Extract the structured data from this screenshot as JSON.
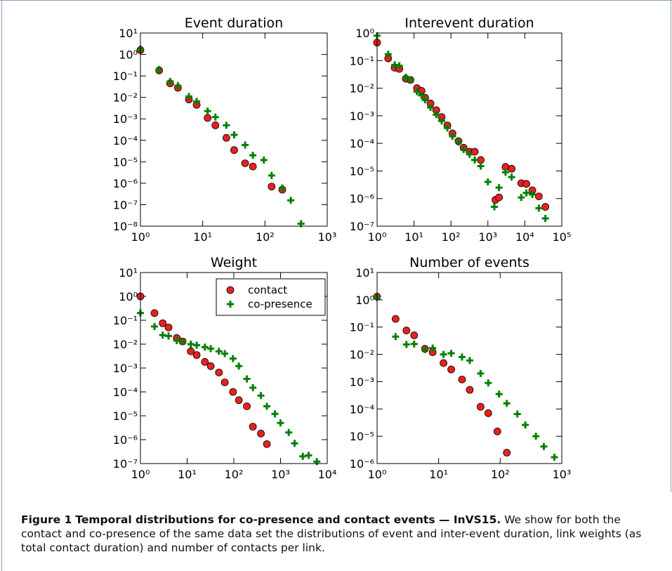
{
  "chart_data": [
    {
      "type": "scatter",
      "title": "Event duration",
      "log_x": true,
      "log_y": true,
      "xlim": [
        1,
        1000
      ],
      "ylim": [
        1e-08,
        10
      ],
      "xticks": [
        {
          "value": 1,
          "label": "10⁰"
        },
        {
          "value": 10,
          "label": "10¹"
        },
        {
          "value": 100,
          "label": "10²"
        },
        {
          "value": 1000,
          "label": "10³"
        }
      ],
      "yticks": [
        {
          "value": 1e-08,
          "label": "10⁻⁸"
        },
        {
          "value": 1e-07,
          "label": "10⁻⁷"
        },
        {
          "value": 1e-06,
          "label": "10⁻⁶"
        },
        {
          "value": 1e-05,
          "label": "10⁻⁵"
        },
        {
          "value": 0.0001,
          "label": "10⁻⁴"
        },
        {
          "value": 0.001,
          "label": "10⁻³"
        },
        {
          "value": 0.01,
          "label": "10⁻²"
        },
        {
          "value": 0.1,
          "label": "10⁻¹"
        },
        {
          "value": 1,
          "label": "10⁰"
        },
        {
          "value": 10,
          "label": "10¹"
        }
      ],
      "series": [
        {
          "color": "#e8201f",
          "marker": "circle",
          "x": [
            1,
            2,
            3,
            4,
            6,
            8,
            12,
            16,
            24,
            32,
            48,
            64,
            128,
            190
          ],
          "values": [
            1.6,
            0.18,
            0.045,
            0.028,
            0.008,
            0.0045,
            0.0011,
            0.0005,
            0.00013,
            3.5e-05,
            8.5e-06,
            6e-06,
            7e-07,
            5e-07
          ]
        },
        {
          "color": "#008000",
          "marker": "plus",
          "x": [
            1,
            2,
            3,
            4,
            6,
            8,
            12,
            16,
            24,
            32,
            48,
            64,
            96,
            128,
            190,
            260,
            380
          ],
          "values": [
            1.8,
            0.2,
            0.055,
            0.035,
            0.011,
            0.0065,
            0.0023,
            0.0012,
            0.0005,
            0.00018,
            6e-05,
            2e-05,
            1.2e-05,
            2.3e-06,
            6e-07,
            1.6e-07,
            1.3e-08
          ]
        }
      ]
    },
    {
      "type": "scatter",
      "title": "Interevent duration",
      "log_x": true,
      "log_y": true,
      "xlim": [
        1,
        100000
      ],
      "ylim": [
        1e-07,
        1
      ],
      "xticks": [
        {
          "value": 1,
          "label": "10⁰"
        },
        {
          "value": 10,
          "label": "10¹"
        },
        {
          "value": 100,
          "label": "10²"
        },
        {
          "value": 1000,
          "label": "10³"
        },
        {
          "value": 10000,
          "label": "10⁴"
        },
        {
          "value": 100000,
          "label": "10⁵"
        }
      ],
      "yticks": [
        {
          "value": 1e-07,
          "label": "10⁻⁷"
        },
        {
          "value": 1e-06,
          "label": "10⁻⁶"
        },
        {
          "value": 1e-05,
          "label": "10⁻⁵"
        },
        {
          "value": 0.0001,
          "label": "10⁻⁴"
        },
        {
          "value": 0.001,
          "label": "10⁻³"
        },
        {
          "value": 0.01,
          "label": "10⁻²"
        },
        {
          "value": 0.1,
          "label": "10⁻¹"
        },
        {
          "value": 1,
          "label": "10⁰"
        }
      ],
      "series": [
        {
          "color": "#e8201f",
          "marker": "circle",
          "x": [
            1,
            2,
            3,
            4,
            6,
            8,
            12,
            16,
            20,
            28,
            40,
            56,
            80,
            110,
            160,
            220,
            320,
            440,
            640,
            1600,
            2000,
            3000,
            4400,
            8000,
            11000,
            16000,
            24000,
            36000
          ],
          "values": [
            0.45,
            0.12,
            0.055,
            0.05,
            0.022,
            0.02,
            0.01,
            0.008,
            0.0045,
            0.0028,
            0.0016,
            0.0009,
            0.00045,
            0.00023,
            0.00012,
            7e-05,
            5e-05,
            5e-05,
            2.5e-05,
            9e-07,
            1.1e-06,
            1.4e-05,
            1.2e-05,
            3.6e-06,
            3.4e-06,
            2e-06,
            1.2e-06,
            5e-07
          ]
        },
        {
          "color": "#008000",
          "marker": "plus",
          "x": [
            1,
            2,
            3,
            4,
            6,
            8,
            12,
            16,
            20,
            28,
            40,
            56,
            80,
            110,
            160,
            220,
            320,
            440,
            640,
            1000,
            1500,
            2000,
            3000,
            4400,
            8000,
            11000,
            16000,
            24000,
            36000
          ],
          "values": [
            0.8,
            0.17,
            0.07,
            0.065,
            0.025,
            0.02,
            0.0075,
            0.0055,
            0.0038,
            0.002,
            0.0011,
            0.00065,
            0.00036,
            0.00018,
            0.00011,
            6e-05,
            4e-05,
            2.5e-05,
            1.5e-05,
            4e-06,
            5e-07,
            2.5e-06,
            9e-06,
            6e-06,
            1.1e-06,
            1.6e-06,
            1.4e-06,
            4.5e-07,
            1.9e-07
          ]
        }
      ]
    },
    {
      "type": "scatter",
      "title": "Weight",
      "log_x": true,
      "log_y": true,
      "legend": "upper right",
      "xlim": [
        1,
        10000
      ],
      "ylim": [
        1e-07,
        10
      ],
      "xticks": [
        {
          "value": 1,
          "label": "10⁰"
        },
        {
          "value": 10,
          "label": "10¹"
        },
        {
          "value": 100,
          "label": "10²"
        },
        {
          "value": 1000,
          "label": "10³"
        },
        {
          "value": 10000,
          "label": "10⁴"
        }
      ],
      "yticks": [
        {
          "value": 1e-07,
          "label": "10⁻⁷"
        },
        {
          "value": 1e-06,
          "label": "10⁻⁶"
        },
        {
          "value": 1e-05,
          "label": "10⁻⁵"
        },
        {
          "value": 0.0001,
          "label": "10⁻⁴"
        },
        {
          "value": 0.001,
          "label": "10⁻³"
        },
        {
          "value": 0.01,
          "label": "10⁻²"
        },
        {
          "value": 0.1,
          "label": "10⁻¹"
        },
        {
          "value": 1,
          "label": "10⁰"
        },
        {
          "value": 10,
          "label": "10¹"
        }
      ],
      "series": [
        {
          "name": "contact",
          "color": "#e8201f",
          "marker": "circle",
          "x": [
            1,
            2,
            3,
            4,
            6,
            8,
            12,
            16,
            24,
            32,
            48,
            64,
            96,
            128,
            190,
            256,
            380,
            510
          ],
          "values": [
            1,
            0.2,
            0.075,
            0.05,
            0.018,
            0.013,
            0.005,
            0.0035,
            0.0018,
            0.0012,
            0.00065,
            0.00025,
            0.0001,
            4.5e-05,
            2.5e-05,
            3.5e-06,
            1.8e-06,
            6.5e-07
          ]
        },
        {
          "name": "co-presence",
          "color": "#008000",
          "marker": "plus",
          "x": [
            1,
            2,
            3,
            4,
            6,
            8,
            12,
            16,
            24,
            32,
            48,
            64,
            96,
            128,
            190,
            256,
            380,
            510,
            760,
            1000,
            1500,
            2000,
            3000,
            4000,
            6000
          ],
          "values": [
            0.2,
            0.055,
            0.024,
            0.022,
            0.014,
            0.013,
            0.01,
            0.009,
            0.0075,
            0.0065,
            0.005,
            0.004,
            0.0025,
            0.0012,
            0.00035,
            0.00015,
            7e-05,
            2.5e-05,
            1.2e-05,
            5e-06,
            2e-06,
            7e-07,
            2e-07,
            2.2e-07,
            1.2e-07
          ]
        }
      ]
    },
    {
      "type": "scatter",
      "title": "Number of events",
      "log_x": true,
      "log_y": true,
      "xlim": [
        1,
        1000
      ],
      "ylim": [
        1e-06,
        10
      ],
      "xticks": [
        {
          "value": 1,
          "label": "10⁰"
        },
        {
          "value": 10,
          "label": "10¹"
        },
        {
          "value": 100,
          "label": "10²"
        },
        {
          "value": 1000,
          "label": "10³"
        }
      ],
      "yticks": [
        {
          "value": 1e-06,
          "label": "10⁻⁶"
        },
        {
          "value": 1e-05,
          "label": "10⁻⁵"
        },
        {
          "value": 0.0001,
          "label": "10⁻⁴"
        },
        {
          "value": 0.001,
          "label": "10⁻³"
        },
        {
          "value": 0.01,
          "label": "10⁻²"
        },
        {
          "value": 0.1,
          "label": "10⁻¹"
        },
        {
          "value": 1,
          "label": "10⁰"
        },
        {
          "value": 10,
          "label": "10¹"
        }
      ],
      "series": [
        {
          "color": "#e8201f",
          "marker": "circle",
          "x": [
            1,
            2,
            3,
            4,
            6,
            8,
            12,
            16,
            24,
            32,
            48,
            64,
            90,
            128
          ],
          "values": [
            1.3,
            0.2,
            0.075,
            0.05,
            0.016,
            0.012,
            0.0048,
            0.0028,
            0.0012,
            0.0005,
            0.00012,
            7e-05,
            1.5e-05,
            2.5e-06
          ]
        },
        {
          "color": "#008000",
          "marker": "plus",
          "x": [
            1,
            2,
            3,
            4,
            6,
            8,
            12,
            16,
            24,
            32,
            48,
            64,
            96,
            128,
            190,
            256,
            380,
            512,
            760
          ],
          "values": [
            1.2,
            0.045,
            0.023,
            0.024,
            0.015,
            0.017,
            0.01,
            0.011,
            0.008,
            0.006,
            0.002,
            0.0009,
            0.00035,
            0.00016,
            6.5e-05,
            2.6e-05,
            1e-05,
            4.2e-06,
            1.7e-06
          ]
        }
      ]
    }
  ],
  "caption": {
    "label": "Figure 1",
    "title": "Temporal distributions for co-presence and contact events — InVS15.",
    "text": "We show for both the contact and co-presence of the same data set the distributions of event and inter-event duration, link weights (as total contact duration) and number of contacts per link."
  }
}
